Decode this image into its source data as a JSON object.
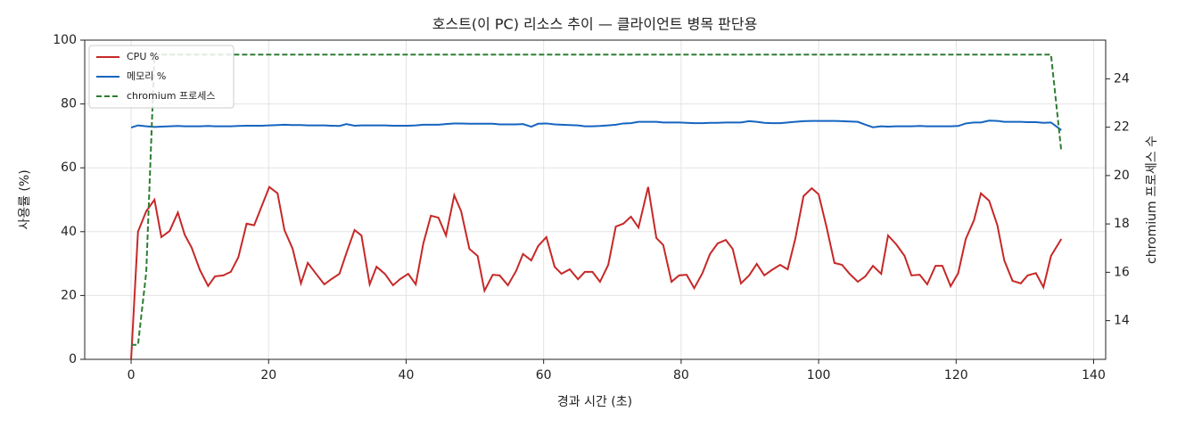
{
  "chart_data": {
    "type": "line",
    "title": "호스트(이 PC) 리소스 추이 — 클라이언트 병목 판단용",
    "xlabel": "경과 시간 (초)",
    "ylabel": "사용률 (%)",
    "y2label": "chromium 프로세스 수",
    "x": [
      0,
      1.0,
      2.2,
      3.4,
      4.4,
      5.6,
      6.8,
      7.8,
      8.8,
      10,
      11.2,
      12.2,
      13.4,
      14.5,
      15.6,
      16.8,
      17.9,
      19,
      20.1,
      21.3,
      22.3,
      23.5,
      24.7,
      25.7,
      26.9,
      28.1,
      29.1,
      30.3,
      31.3,
      32.5,
      33.5,
      34.7,
      35.7,
      36.9,
      38.1,
      39.1,
      40.3,
      41.4,
      42.5,
      43.6,
      44.7,
      45.8,
      47,
      48,
      49.2,
      50.4,
      51.4,
      52.6,
      53.6,
      54.8,
      56,
      57,
      58.2,
      59.2,
      60.4,
      61.6,
      62.6,
      63.8,
      65,
      66,
      67.1,
      68.2,
      69.4,
      70.5,
      71.6,
      72.7,
      73.8,
      75.2,
      76.4,
      77.4,
      78.6,
      79.7,
      80.8,
      81.9,
      83.1,
      84.2,
      85.3,
      86.5,
      87.5,
      88.7,
      89.9,
      91,
      92.1,
      93.2,
      94.4,
      95.5,
      96.6,
      97.8,
      99,
      100,
      101.2,
      102.3,
      103.4,
      104.5,
      105.7,
      106.8,
      107.9,
      109.1,
      110.1,
      111.3,
      112.5,
      113.5,
      114.7,
      115.8,
      117,
      118,
      119.2,
      120.3,
      121.4,
      122.6,
      123.6,
      124.8,
      126,
      127,
      128.2,
      129.4,
      130.4,
      131.6,
      132.7,
      133.8,
      135.3
    ],
    "series": [
      {
        "name": "CPU %",
        "color": "#c62828",
        "linestyle": "solid",
        "values": [
          0,
          40,
          46.4,
          50,
          38.3,
          40.2,
          46,
          39,
          35,
          28,
          23,
          26,
          26.3,
          27.4,
          32,
          42.5,
          42,
          48,
          54,
          52,
          40.5,
          34.6,
          23.8,
          30.2,
          26.8,
          23.5,
          25.1,
          26.8,
          33.2,
          40.5,
          38.8,
          23.5,
          29,
          26.8,
          23.2,
          25.1,
          26.8,
          23.5,
          36.3,
          45,
          44.4,
          38.8,
          51.4,
          46.4,
          34.6,
          32.4,
          21.5,
          26.5,
          26.3,
          23.2,
          27.7,
          33,
          31,
          35.5,
          38.3,
          29,
          26.8,
          28.2,
          25.1,
          27.4,
          27.4,
          24.3,
          29.6,
          41.6,
          42.5,
          44.7,
          41.3,
          54,
          38,
          35.8,
          24.3,
          26.3,
          26.5,
          22.3,
          27,
          33,
          36.3,
          37.4,
          34.6,
          23.8,
          26.3,
          29.9,
          26.3,
          28,
          29.6,
          28.2,
          37.7,
          51.1,
          53.6,
          51.7,
          41,
          30.2,
          29.6,
          26.8,
          24.3,
          26,
          29.3,
          26.8,
          38.8,
          36,
          32.4,
          26.3,
          26.5,
          23.5,
          29.3,
          29.3,
          22.9,
          27,
          37.7,
          43.6,
          52,
          49.7,
          42,
          31,
          24.6,
          23.8,
          26.3,
          27,
          22.6,
          32.4,
          37.7
        ]
      },
      {
        "name": "메모리 %",
        "color": "#1565c0",
        "linestyle": "solid",
        "values": [
          72.6,
          73.3,
          73.0,
          72.8,
          72.9,
          73.0,
          73.1,
          73.0,
          73.0,
          73.0,
          73.1,
          73.0,
          73.0,
          73.0,
          73.1,
          73.2,
          73.2,
          73.2,
          73.3,
          73.4,
          73.5,
          73.4,
          73.4,
          73.3,
          73.3,
          73.3,
          73.2,
          73.1,
          73.7,
          73.2,
          73.3,
          73.3,
          73.3,
          73.3,
          73.2,
          73.2,
          73.2,
          73.3,
          73.5,
          73.5,
          73.5,
          73.7,
          73.9,
          73.9,
          73.8,
          73.8,
          73.8,
          73.8,
          73.6,
          73.6,
          73.6,
          73.7,
          72.9,
          73.8,
          73.9,
          73.6,
          73.5,
          73.4,
          73.3,
          73.0,
          73.0,
          73.1,
          73.3,
          73.5,
          73.9,
          74.0,
          74.4,
          74.4,
          74.4,
          74.2,
          74.2,
          74.2,
          74.1,
          74.0,
          74.0,
          74.1,
          74.1,
          74.2,
          74.2,
          74.2,
          74.6,
          74.4,
          74.1,
          74.0,
          74.0,
          74.2,
          74.4,
          74.6,
          74.7,
          74.7,
          74.7,
          74.7,
          74.6,
          74.5,
          74.4,
          73.5,
          72.7,
          73.0,
          72.9,
          73.0,
          73.0,
          73.0,
          73.1,
          73.0,
          73.0,
          73.0,
          73.0,
          73.1,
          73.9,
          74.2,
          74.2,
          74.8,
          74.7,
          74.4,
          74.4,
          74.4,
          74.3,
          74.3,
          74.1,
          74.2,
          71.8
        ]
      },
      {
        "name": "chromium 프로세스",
        "color": "#2e7d32",
        "linestyle": "dashed",
        "axis": "y2",
        "values": [
          13,
          13,
          16,
          25,
          25,
          25,
          25,
          25,
          25,
          25,
          25,
          25,
          25,
          25,
          25,
          25,
          25,
          25,
          25,
          25,
          25,
          25,
          25,
          25,
          25,
          25,
          25,
          25,
          25,
          25,
          25,
          25,
          25,
          25,
          25,
          25,
          25,
          25,
          25,
          25,
          25,
          25,
          25,
          25,
          25,
          25,
          25,
          25,
          25,
          25,
          25,
          25,
          25,
          25,
          25,
          25,
          25,
          25,
          25,
          25,
          25,
          25,
          25,
          25,
          25,
          25,
          25,
          25,
          25,
          25,
          25,
          25,
          25,
          25,
          25,
          25,
          25,
          25,
          25,
          25,
          25,
          25,
          25,
          25,
          25,
          25,
          25,
          25,
          25,
          25,
          25,
          25,
          25,
          25,
          25,
          25,
          25,
          25,
          25,
          25,
          25,
          25,
          25,
          25,
          25,
          25,
          25,
          25,
          25,
          25,
          25,
          25,
          25,
          25,
          25,
          25,
          25,
          25,
          25,
          25,
          21
        ]
      }
    ],
    "xlim": [
      -6.75,
      141.75
    ],
    "xticks": [
      0,
      20,
      40,
      60,
      80,
      100,
      120,
      140
    ],
    "ylim": [
      0,
      100
    ],
    "yticks": [
      0,
      20,
      40,
      60,
      80,
      100
    ],
    "y2lim": [
      12.4,
      25.6
    ],
    "y2ticks": [
      14,
      16,
      18,
      20,
      22,
      24
    ],
    "grid": true,
    "legend": "upper left"
  }
}
